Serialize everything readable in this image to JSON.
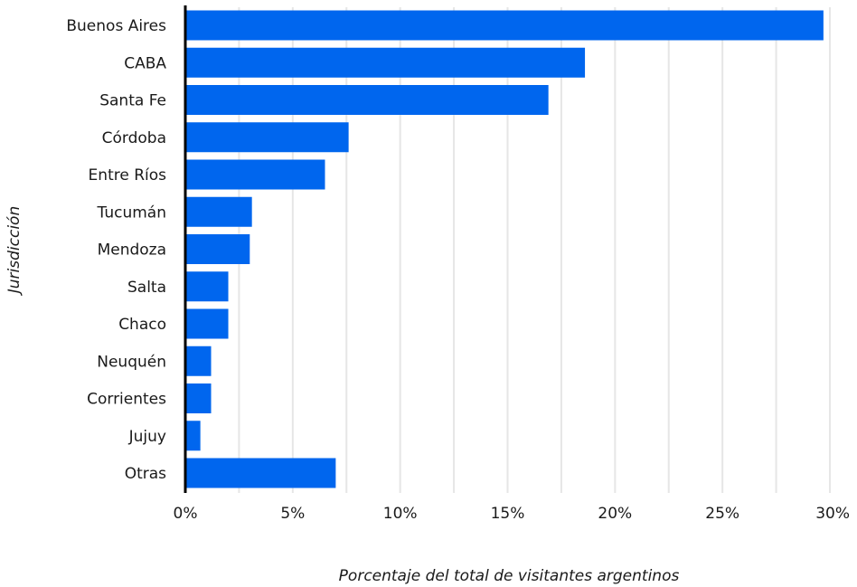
{
  "chart_data": {
    "type": "bar",
    "orientation": "horizontal",
    "title": "",
    "xlabel": "Porcentaje del total de visitantes argentinos",
    "ylabel": "Jurisdicción",
    "categories": [
      "Buenos Aires",
      "CABA",
      "Santa Fe",
      "Córdoba",
      "Entre Ríos",
      "Tucumán",
      "Mendoza",
      "Salta",
      "Chaco",
      "Neuquén",
      "Corrientes",
      "Jujuy",
      "Otras"
    ],
    "values": [
      29.7,
      18.6,
      16.9,
      7.6,
      6.5,
      3.1,
      3.0,
      2.0,
      2.0,
      1.2,
      1.2,
      0.7,
      7.0
    ],
    "xlim": [
      0,
      30
    ],
    "xticks": [
      0,
      5,
      10,
      15,
      20,
      25,
      30
    ],
    "xtick_labels": [
      "0%",
      "5%",
      "10%",
      "15%",
      "20%",
      "25%",
      "30%"
    ],
    "grid": "vertical",
    "legend": "none",
    "bar_color": "#0066ee",
    "grid_color": "#e6e6e6",
    "axis_color": "#000000"
  }
}
